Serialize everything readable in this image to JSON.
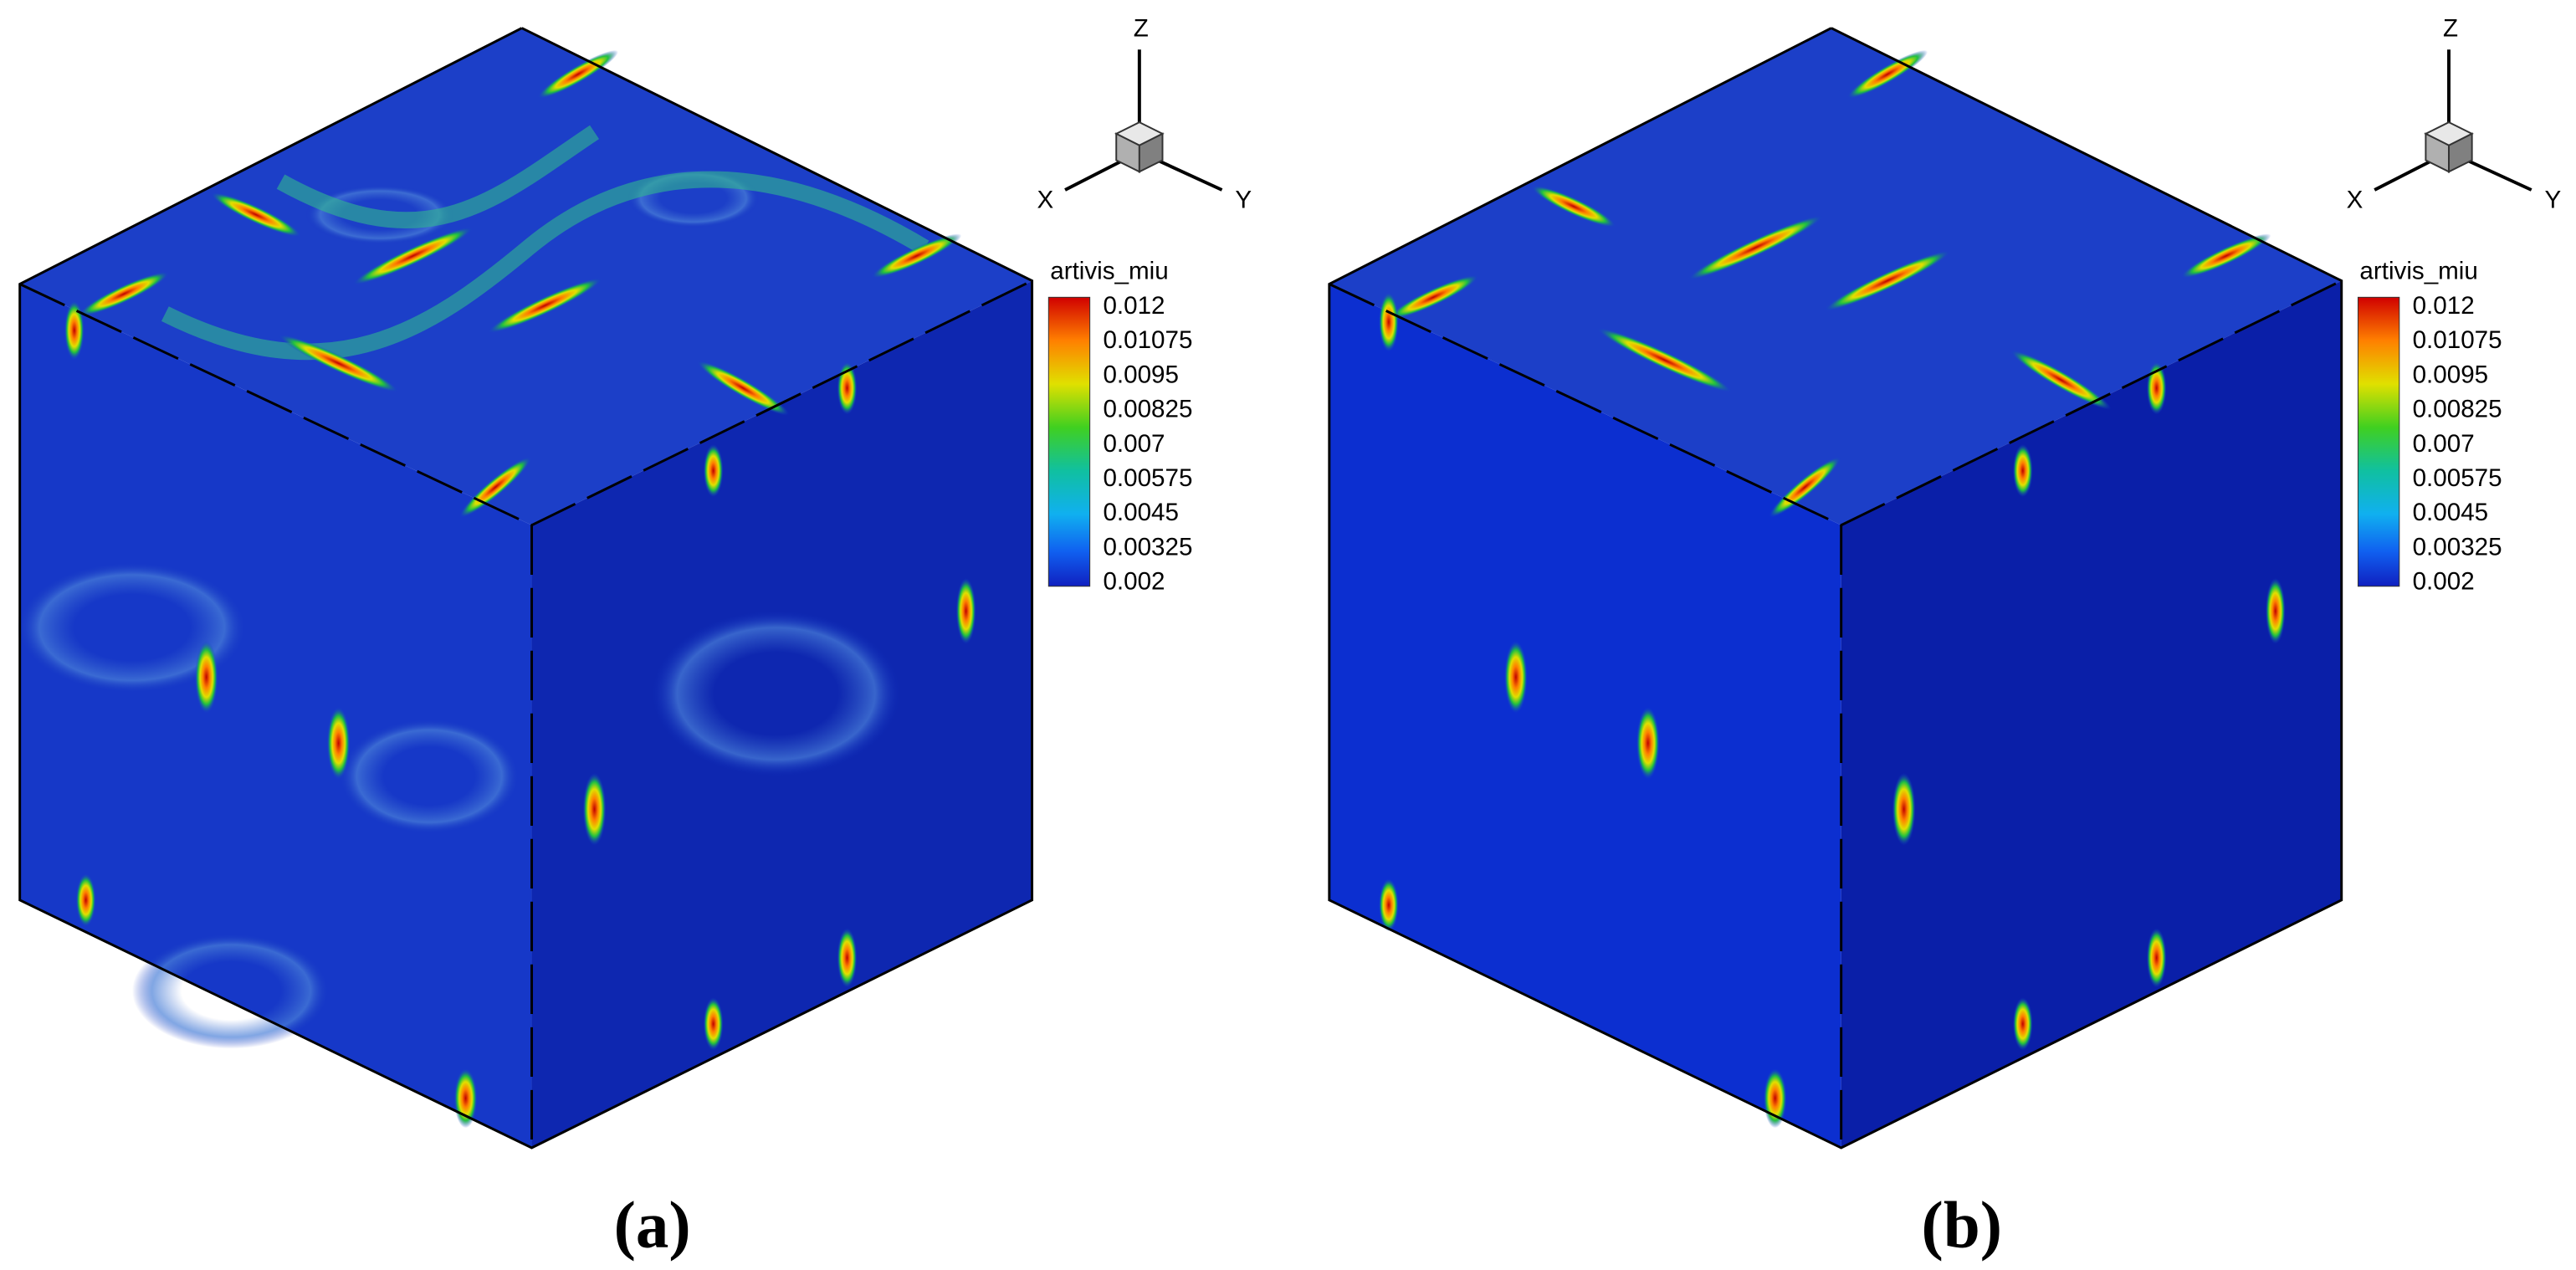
{
  "panels": [
    {
      "caption": "(a)",
      "legend": {
        "title": "artivis_miu",
        "ticks": [
          "0.012",
          "0.01075",
          "0.0095",
          "0.00825",
          "0.007",
          "0.00575",
          "0.0045",
          "0.00325",
          "0.002"
        ]
      },
      "axes": {
        "x": "X",
        "y": "Y",
        "z": "Z"
      }
    },
    {
      "caption": "(b)",
      "legend": {
        "title": "artivis_miu",
        "ticks": [
          "0.012",
          "0.01075",
          "0.0095",
          "0.00825",
          "0.007",
          "0.00575",
          "0.0045",
          "0.00325",
          "0.002"
        ]
      },
      "axes": {
        "x": "X",
        "y": "Y",
        "z": "Z"
      }
    }
  ]
}
